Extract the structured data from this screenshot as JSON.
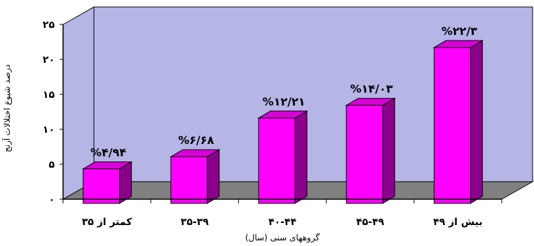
{
  "chart_data": {
    "type": "bar",
    "title": "",
    "xlabel": "گروههای سنی (سال)",
    "ylabel": "درصد شیوع اختلالات آرنج",
    "ylim": [
      0,
      25
    ],
    "yticks": [
      0,
      5,
      10,
      15,
      20,
      25
    ],
    "ytick_labels": [
      "۰",
      "۵",
      "۱۰",
      "۱۵",
      "۲۰",
      "۲۵"
    ],
    "categories": [
      "کمتر از ۳۵",
      "۳۵-۳۹",
      "۴۰-۴۴",
      "۴۵-۴۹",
      "بیش از ۴۹"
    ],
    "values": [
      4.94,
      6.68,
      12.21,
      14.03,
      22.3
    ],
    "data_labels": [
      "%۴/۹۴",
      "%۶/۶۸",
      "%۱۲/۲۱",
      "%۱۴/۰۳",
      "%۲۲/۳"
    ],
    "grid": false,
    "legend": "none",
    "colors": {
      "bar_front": "#ff00ff",
      "bar_top": "#d700d7",
      "bar_side": "#8a008a",
      "wall": "#b5b5e6",
      "floor": "#808080"
    }
  }
}
